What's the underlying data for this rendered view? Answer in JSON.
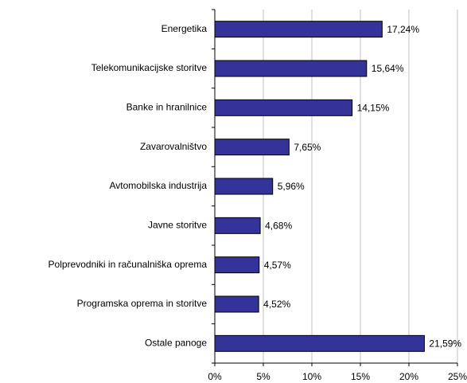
{
  "chart_data": {
    "type": "bar",
    "orientation": "horizontal",
    "categories": [
      "Energetika",
      "Telekomunikacijske storitve",
      "Banke in hranilnice",
      "Zavarovalništvo",
      "Avtomobilska industrija",
      "Javne storitve",
      "Polprevodniki in računalniška oprema",
      "Programska oprema in storitve",
      "Ostale panoge"
    ],
    "values": [
      17.24,
      15.64,
      14.15,
      7.65,
      5.96,
      4.68,
      4.57,
      4.52,
      21.59
    ],
    "value_labels": [
      "17,24%",
      "15,64%",
      "14,15%",
      "7,65%",
      "5,96%",
      "4,68%",
      "4,57%",
      "4,52%",
      "21,59%"
    ],
    "color": "#333399",
    "xlim": [
      0,
      25
    ],
    "xticks": [
      {
        "value": 0,
        "label": "0%"
      },
      {
        "value": 5,
        "label": "5%"
      },
      {
        "value": 10,
        "label": "10%"
      },
      {
        "value": 15,
        "label": "15%"
      },
      {
        "value": 20,
        "label": "20%"
      },
      {
        "value": 25,
        "label": "25%"
      }
    ],
    "grid": true
  }
}
